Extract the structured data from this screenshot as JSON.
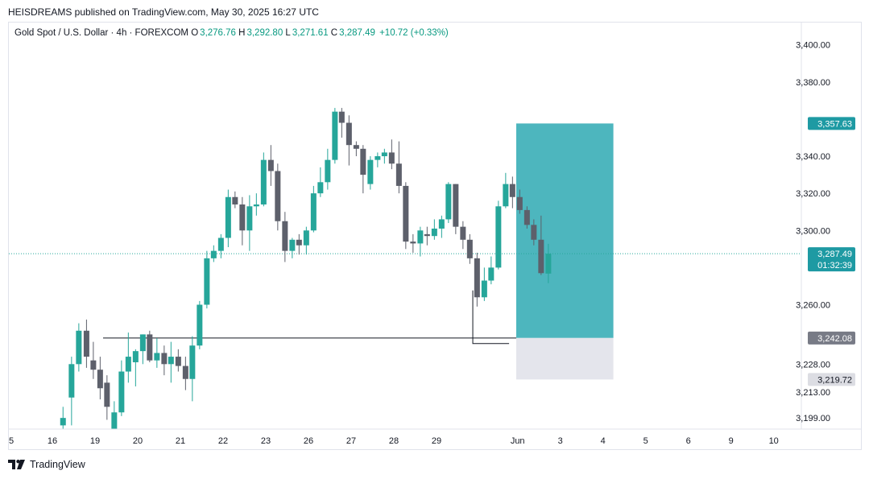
{
  "header": {
    "publish_line": "HEISDREAMS published on TradingView.com, May 30, 2025 16:27 UTC"
  },
  "legend": {
    "symbol": "Gold Spot / U.S. Dollar · 4h · FOREXCOM",
    "open_label": "O",
    "open": "3,276.76",
    "high_label": "H",
    "high": "3,292.80",
    "low_label": "L",
    "low": "3,271.61",
    "close_label": "C",
    "close": "3,287.49",
    "change": "+10.72 (+0.33%)"
  },
  "footer": {
    "brand": "TradingView"
  },
  "colors": {
    "up": "#26a69a",
    "down": "#5d606b",
    "target_zone": "#4db6be",
    "stop_zone": "#e4e5ec",
    "last_price": "#26a69a"
  },
  "chart_data": {
    "type": "candlestick",
    "y_axis": {
      "range": [
        3193,
        3412
      ]
    },
    "x_ticks": [
      "5",
      "16",
      "19",
      "20",
      "21",
      "22",
      "23",
      "26",
      "27",
      "28",
      "29",
      "Jun",
      "3",
      "4",
      "5",
      "6",
      "9",
      "10"
    ],
    "y_tick_labels": [
      "3,400.00",
      "3,380.00",
      "3,340.00",
      "3,320.00",
      "3,300.00",
      "3,260.00",
      "3,228.00",
      "3,213.00",
      "3,199.00"
    ],
    "y_tick_values": [
      3400,
      3380,
      3340,
      3320,
      3300,
      3260,
      3228,
      3213,
      3199
    ],
    "price_labels": [
      {
        "text": "3,357.63",
        "value": 3357.63,
        "style": "target"
      },
      {
        "text": "3,287.49",
        "value": 3287.49,
        "style": "last",
        "sub": "01:32:39"
      },
      {
        "text": "3,242.08",
        "value": 3242.08,
        "style": "entry"
      },
      {
        "text": "3,219.72",
        "value": 3219.72,
        "style": "stop"
      }
    ],
    "last_price": 3287.49,
    "countdown": "01:32:39",
    "horizontal_lines": [
      {
        "from_bar": 0,
        "to_bar": 999,
        "value": 3242.08
      }
    ],
    "position_box": {
      "entry": 3242.08,
      "target": 3357.63,
      "stop": 3219.72,
      "start_day": 11,
      "end_day": 13.2
    },
    "low_marker": {
      "value": 3259,
      "from_day": 9.85,
      "to_day": 10.7
    },
    "candles": [
      {
        "t": 0.25,
        "o": 3195,
        "h": 3205,
        "l": 3190,
        "c": 3199
      },
      {
        "t": 0.45,
        "o": 3210,
        "h": 3232,
        "l": 3195,
        "c": 3228
      },
      {
        "t": 0.62,
        "o": 3228,
        "h": 3250,
        "l": 3224,
        "c": 3246
      },
      {
        "t": 0.8,
        "o": 3246,
        "h": 3252,
        "l": 3226,
        "c": 3232
      },
      {
        "t": 0.96,
        "o": 3230,
        "h": 3240,
        "l": 3220,
        "c": 3225
      },
      {
        "t": 1.12,
        "o": 3225,
        "h": 3232,
        "l": 3209,
        "c": 3215
      },
      {
        "t": 1.28,
        "o": 3218,
        "h": 3222,
        "l": 3198,
        "c": 3205
      },
      {
        "t": 1.45,
        "o": 3192,
        "h": 3208,
        "l": 3188,
        "c": 3202
      },
      {
        "t": 1.62,
        "o": 3202,
        "h": 3230,
        "l": 3200,
        "c": 3224
      },
      {
        "t": 1.78,
        "o": 3224,
        "h": 3245,
        "l": 3218,
        "c": 3232
      },
      {
        "t": 1.95,
        "o": 3229,
        "h": 3236,
        "l": 3216,
        "c": 3235
      },
      {
        "t": 2.12,
        "o": 3235,
        "h": 3244,
        "l": 3228,
        "c": 3244
      },
      {
        "t": 2.28,
        "o": 3244,
        "h": 3246,
        "l": 3229,
        "c": 3230
      },
      {
        "t": 2.45,
        "o": 3230,
        "h": 3242,
        "l": 3226,
        "c": 3234
      },
      {
        "t": 2.62,
        "o": 3234,
        "h": 3238,
        "l": 3222,
        "c": 3228
      },
      {
        "t": 2.78,
        "o": 3228,
        "h": 3240,
        "l": 3218,
        "c": 3232
      },
      {
        "t": 2.95,
        "o": 3232,
        "h": 3236,
        "l": 3224,
        "c": 3227
      },
      {
        "t": 3.12,
        "o": 3227,
        "h": 3232,
        "l": 3214,
        "c": 3220
      },
      {
        "t": 3.28,
        "o": 3220,
        "h": 3243,
        "l": 3208,
        "c": 3238
      },
      {
        "t": 3.45,
        "o": 3238,
        "h": 3262,
        "l": 3236,
        "c": 3260
      },
      {
        "t": 3.62,
        "o": 3260,
        "h": 3289,
        "l": 3258,
        "c": 3285
      },
      {
        "t": 3.78,
        "o": 3285,
        "h": 3292,
        "l": 3283,
        "c": 3289
      },
      {
        "t": 3.95,
        "o": 3289,
        "h": 3298,
        "l": 3285,
        "c": 3296
      },
      {
        "t": 4.12,
        "o": 3296,
        "h": 3322,
        "l": 3291,
        "c": 3318
      },
      {
        "t": 4.28,
        "o": 3318,
        "h": 3321,
        "l": 3312,
        "c": 3314
      },
      {
        "t": 4.45,
        "o": 3314,
        "h": 3318,
        "l": 3292,
        "c": 3300
      },
      {
        "t": 4.62,
        "o": 3300,
        "h": 3319,
        "l": 3289,
        "c": 3313
      },
      {
        "t": 4.78,
        "o": 3313,
        "h": 3320,
        "l": 3308,
        "c": 3314
      },
      {
        "t": 4.95,
        "o": 3314,
        "h": 3342,
        "l": 3313,
        "c": 3338
      },
      {
        "t": 5.12,
        "o": 3338,
        "h": 3346,
        "l": 3324,
        "c": 3332
      },
      {
        "t": 5.28,
        "o": 3332,
        "h": 3336,
        "l": 3300,
        "c": 3305
      },
      {
        "t": 5.45,
        "o": 3305,
        "h": 3310,
        "l": 3283,
        "c": 3289
      },
      {
        "t": 5.62,
        "o": 3289,
        "h": 3296,
        "l": 3285,
        "c": 3295
      },
      {
        "t": 5.78,
        "o": 3295,
        "h": 3298,
        "l": 3287,
        "c": 3292
      },
      {
        "t": 5.95,
        "o": 3292,
        "h": 3302,
        "l": 3287,
        "c": 3300
      },
      {
        "t": 6.12,
        "o": 3300,
        "h": 3324,
        "l": 3299,
        "c": 3320
      },
      {
        "t": 6.28,
        "o": 3320,
        "h": 3334,
        "l": 3318,
        "c": 3326
      },
      {
        "t": 6.45,
        "o": 3326,
        "h": 3344,
        "l": 3322,
        "c": 3338
      },
      {
        "t": 6.62,
        "o": 3338,
        "h": 3366,
        "l": 3336,
        "c": 3364
      },
      {
        "t": 6.78,
        "o": 3364,
        "h": 3366,
        "l": 3350,
        "c": 3358
      },
      {
        "t": 6.95,
        "o": 3358,
        "h": 3362,
        "l": 3335,
        "c": 3346
      },
      {
        "t": 7.12,
        "o": 3346,
        "h": 3348,
        "l": 3340,
        "c": 3344
      },
      {
        "t": 7.28,
        "o": 3344,
        "h": 3346,
        "l": 3320,
        "c": 3330
      },
      {
        "t": 7.45,
        "o": 3325,
        "h": 3340,
        "l": 3322,
        "c": 3338
      },
      {
        "t": 7.62,
        "o": 3338,
        "h": 3342,
        "l": 3334,
        "c": 3340
      },
      {
        "t": 7.78,
        "o": 3340,
        "h": 3344,
        "l": 3336,
        "c": 3342
      },
      {
        "t": 7.95,
        "o": 3342,
        "h": 3349,
        "l": 3333,
        "c": 3336
      },
      {
        "t": 8.12,
        "o": 3336,
        "h": 3348,
        "l": 3320,
        "c": 3324
      },
      {
        "t": 8.28,
        "o": 3324,
        "h": 3326,
        "l": 3290,
        "c": 3294
      },
      {
        "t": 8.45,
        "o": 3294,
        "h": 3298,
        "l": 3288,
        "c": 3293
      },
      {
        "t": 8.62,
        "o": 3293,
        "h": 3302,
        "l": 3286,
        "c": 3300
      },
      {
        "t": 8.78,
        "o": 3298,
        "h": 3302,
        "l": 3292,
        "c": 3297
      },
      {
        "t": 8.95,
        "o": 3297,
        "h": 3306,
        "l": 3295,
        "c": 3301
      },
      {
        "t": 9.12,
        "o": 3301,
        "h": 3308,
        "l": 3296,
        "c": 3306
      },
      {
        "t": 9.28,
        "o": 3306,
        "h": 3326,
        "l": 3304,
        "c": 3325
      },
      {
        "t": 9.45,
        "o": 3325,
        "h": 3325,
        "l": 3298,
        "c": 3302
      },
      {
        "t": 9.62,
        "o": 3302,
        "h": 3305,
        "l": 3290,
        "c": 3295
      },
      {
        "t": 9.78,
        "o": 3295,
        "h": 3298,
        "l": 3282,
        "c": 3285
      },
      {
        "t": 9.95,
        "o": 3285,
        "h": 3288,
        "l": 3259,
        "c": 3264
      },
      {
        "t": 10.12,
        "o": 3264,
        "h": 3280,
        "l": 3262,
        "c": 3273
      },
      {
        "t": 10.28,
        "o": 3273,
        "h": 3286,
        "l": 3271,
        "c": 3280
      },
      {
        "t": 10.45,
        "o": 3280,
        "h": 3316,
        "l": 3279,
        "c": 3313
      },
      {
        "t": 10.62,
        "o": 3313,
        "h": 3331,
        "l": 3312,
        "c": 3325
      },
      {
        "t": 10.78,
        "o": 3325,
        "h": 3329,
        "l": 3312,
        "c": 3318
      },
      {
        "t": 10.95,
        "o": 3318,
        "h": 3322,
        "l": 3309,
        "c": 3311
      },
      {
        "t": 11.12,
        "o": 3311,
        "h": 3313,
        "l": 3301,
        "c": 3303
      },
      {
        "t": 11.28,
        "o": 3303,
        "h": 3306,
        "l": 3292,
        "c": 3295
      },
      {
        "t": 11.45,
        "o": 3295,
        "h": 3308,
        "l": 3276,
        "c": 3277
      },
      {
        "t": 11.62,
        "o": 3276.76,
        "h": 3292.8,
        "l": 3271.61,
        "c": 3287.49
      }
    ]
  }
}
